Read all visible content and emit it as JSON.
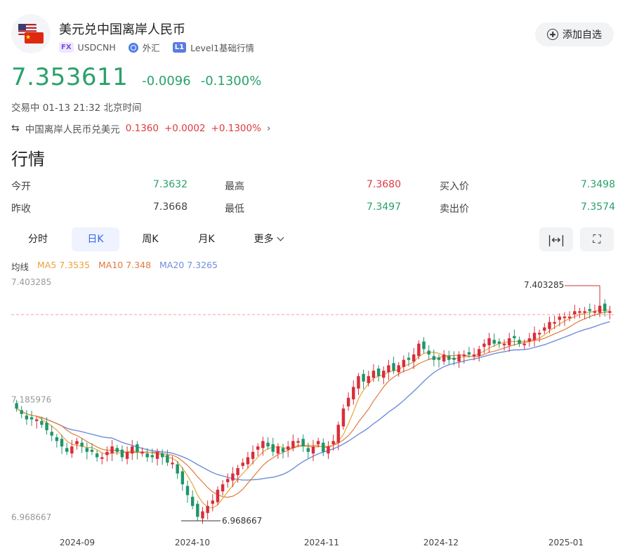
{
  "header": {
    "title": "美元兑中国离岸人民币",
    "fx_tag": "FX",
    "symbol": "USDCNH",
    "market": "外汇",
    "level_tag": "L1",
    "level_label": "Level1基础行情",
    "watch_label": "添加自选"
  },
  "quote": {
    "price": "7.353611",
    "change": "-0.0096",
    "change_pct": "-0.1300%",
    "status": "交易中 01-13 21:32 北京时间"
  },
  "related": {
    "name": "中国离岸人民币兑美元",
    "price": "0.1360",
    "change": "+0.0002",
    "change_pct": "+0.1300%"
  },
  "section_title": "行情",
  "stats": {
    "open_label": "今开",
    "open": "7.3632",
    "high_label": "最高",
    "high": "7.3680",
    "bid_label": "买入价",
    "bid": "7.3498",
    "prev_label": "昨收",
    "prev": "7.3668",
    "low_label": "最低",
    "low": "7.3497",
    "ask_label": "卖出价",
    "ask": "7.3574"
  },
  "tabs": {
    "intraday": "分时",
    "daily": "日K",
    "weekly": "周K",
    "monthly": "月K",
    "more": "更多"
  },
  "ma_legend": {
    "base": "均线",
    "ma5": "MA5 7.3535",
    "ma10": "MA10 7.348",
    "ma20": "MA20 7.3265"
  },
  "colors": {
    "up": "#d92d3a",
    "down": "#21956a",
    "ma5": "#e8a33a",
    "ma10": "#e07a3e",
    "ma20": "#6f8ed9",
    "accent": "#3566e8"
  },
  "chart_data": {
    "type": "candlestick",
    "y_labels": [
      "7.403285",
      "7.185976",
      "6.968667"
    ],
    "x_labels": [
      "2024-09",
      "2024-10",
      "2024-11",
      "2024-12",
      "2025-01"
    ],
    "high_annotation": "7.403285",
    "low_annotation": "6.968667",
    "last_price": 7.353611,
    "closes": [
      7.18,
      7.17,
      7.16,
      7.16,
      7.16,
      7.15,
      7.14,
      7.13,
      7.12,
      7.11,
      7.1,
      7.11,
      7.12,
      7.11,
      7.1,
      7.1,
      7.09,
      7.09,
      7.1,
      7.11,
      7.1,
      7.09,
      7.1,
      7.11,
      7.1,
      7.1,
      7.09,
      7.09,
      7.1,
      7.09,
      7.08,
      7.08,
      7.06,
      7.04,
      7.02,
      7.0,
      6.98,
      6.99,
      7.0,
      7.01,
      7.03,
      7.04,
      7.05,
      7.06,
      7.07,
      7.08,
      7.09,
      7.1,
      7.11,
      7.12,
      7.11,
      7.1,
      7.11,
      7.1,
      7.11,
      7.12,
      7.12,
      7.11,
      7.1,
      7.11,
      7.12,
      7.1,
      7.11,
      7.12,
      7.15,
      7.18,
      7.2,
      7.22,
      7.24,
      7.23,
      7.24,
      7.25,
      7.24,
      7.25,
      7.26,
      7.25,
      7.26,
      7.27,
      7.27,
      7.28,
      7.3,
      7.29,
      7.28,
      7.27,
      7.27,
      7.28,
      7.27,
      7.27,
      7.28,
      7.28,
      7.28,
      7.28,
      7.29,
      7.3,
      7.31,
      7.3,
      7.3,
      7.3,
      7.31,
      7.31,
      7.3,
      7.3,
      7.31,
      7.32,
      7.32,
      7.33,
      7.34,
      7.34,
      7.35,
      7.35,
      7.35,
      7.36,
      7.36,
      7.36,
      7.36,
      7.36,
      7.37,
      7.36,
      7.36
    ]
  }
}
